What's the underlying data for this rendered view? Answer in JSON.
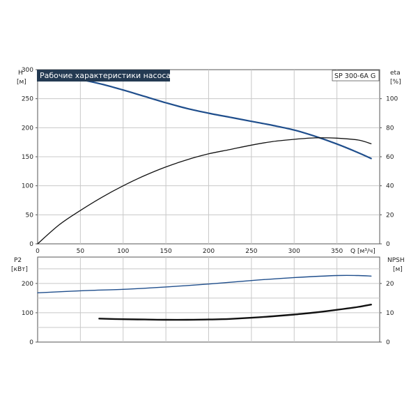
{
  "chart_data": [
    {
      "type": "line",
      "title": "Рабочие характеристики насоса",
      "model_label": "SP 300-6A G",
      "xlabel": "Q [м³/ч]",
      "xlim": [
        0,
        400
      ],
      "x_ticks": [
        0,
        50,
        100,
        150,
        200,
        250,
        300,
        350
      ],
      "left_axis": {
        "label_line1": "H",
        "label_line2": "[м]",
        "ylim": [
          0,
          300
        ],
        "ticks": [
          0,
          50,
          100,
          150,
          200,
          250,
          300
        ]
      },
      "right_axis": {
        "label_line1": "eta",
        "label_line2": "[%]",
        "ylim": [
          0,
          120
        ],
        "ticks": [
          0,
          20,
          40,
          60,
          80,
          100
        ]
      },
      "grid": true,
      "series": [
        {
          "axis": "left",
          "color": "#1f4e8c",
          "x": [
            0,
            25,
            50,
            75,
            100,
            125,
            150,
            175,
            200,
            225,
            250,
            275,
            300,
            325,
            350,
            375,
            390
          ],
          "y": [
            291,
            289,
            283,
            275,
            265,
            254,
            243,
            233,
            225,
            218,
            211,
            204,
            196,
            185,
            172,
            157,
            147
          ]
        },
        {
          "axis": "right",
          "color": "#111111",
          "x": [
            0,
            25,
            50,
            75,
            100,
            125,
            150,
            175,
            200,
            225,
            250,
            275,
            300,
            325,
            350,
            375,
            390
          ],
          "y": [
            0,
            13,
            23,
            32,
            40,
            47,
            53,
            58,
            62,
            65,
            68,
            70.5,
            72,
            73,
            72.8,
            71.5,
            69
          ]
        }
      ]
    },
    {
      "type": "line",
      "xlim": [
        0,
        400
      ],
      "left_axis": {
        "label_line1": "P2",
        "label_line2": "[кВт]",
        "ylim": [
          0,
          290
        ],
        "ticks": [
          0,
          100,
          200
        ]
      },
      "right_axis": {
        "label_line1": "NPSH",
        "label_line2": "[м]",
        "ylim": [
          0,
          29
        ],
        "ticks": [
          0,
          10,
          20
        ]
      },
      "grid": true,
      "series": [
        {
          "axis": "left",
          "color": "#1f4e8c",
          "x": [
            0,
            50,
            100,
            150,
            200,
            250,
            300,
            350,
            375,
            390
          ],
          "y": [
            168,
            175,
            180,
            188,
            198,
            210,
            220,
            227,
            227,
            225
          ]
        },
        {
          "axis": "right",
          "color": "#111111",
          "x": [
            72,
            100,
            125,
            150,
            175,
            200,
            225,
            250,
            275,
            300,
            325,
            350,
            375,
            390
          ],
          "y": [
            8.0,
            7.8,
            7.7,
            7.6,
            7.6,
            7.7,
            7.9,
            8.3,
            8.8,
            9.4,
            10.1,
            11.0,
            12.0,
            12.8
          ]
        }
      ]
    }
  ]
}
